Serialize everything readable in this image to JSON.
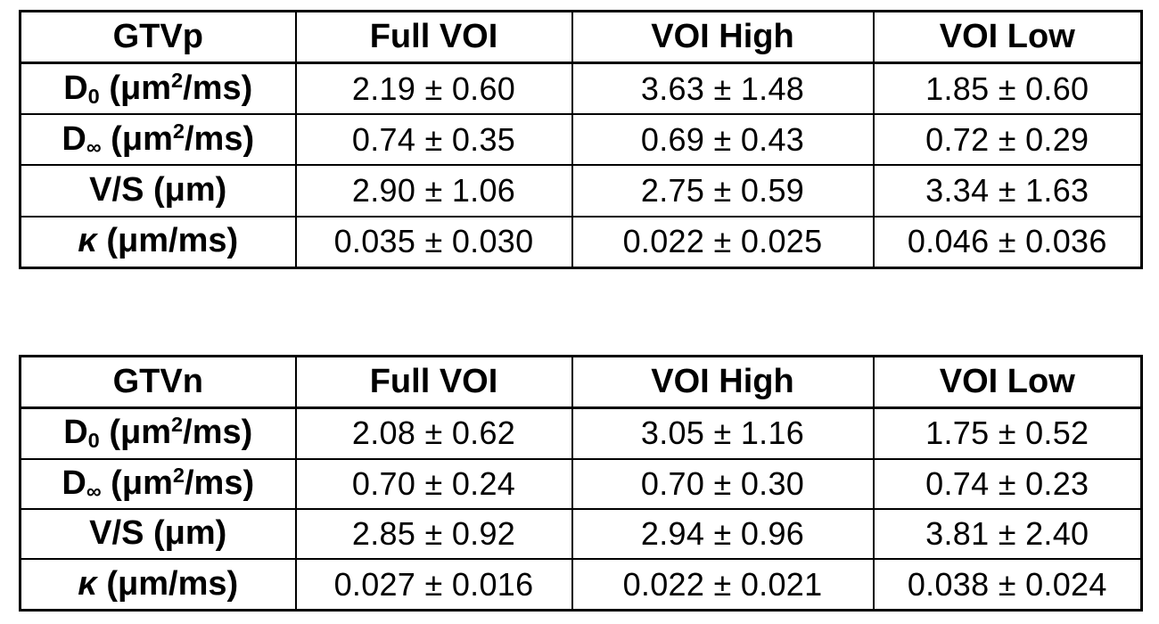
{
  "page": {
    "background_color": "#ffffff",
    "text_color": "#000000",
    "border_color": "#000000"
  },
  "tables": [
    {
      "title": "GTVp",
      "columns": [
        "GTVp",
        "Full VOI",
        "VOI High",
        "VOI Low"
      ],
      "rows": [
        {
          "label": {
            "base": "D",
            "sub": "0",
            "mid": " (μm",
            "sup": "2",
            "end": "/ms)"
          },
          "values": [
            "2.19 ± 0.60",
            "3.63 ± 1.48",
            "1.85 ± 0.60"
          ]
        },
        {
          "label": {
            "base": "D",
            "sub": "∞",
            "mid": " (μm",
            "sup": "2",
            "end": "/ms)"
          },
          "values": [
            "0.74 ± 0.35",
            "0.69 ± 0.43",
            "0.72 ± 0.29"
          ]
        },
        {
          "label": {
            "base": "V/S (μm)"
          },
          "values": [
            "2.90 ± 1.06",
            "2.75 ± 0.59",
            "3.34 ± 1.63"
          ]
        },
        {
          "label": {
            "italic": "κ",
            "end": " (μm/ms)"
          },
          "values": [
            "0.035 ± 0.030",
            "0.022 ± 0.025",
            "0.046 ± 0.036"
          ]
        }
      ]
    },
    {
      "title": "GTVn",
      "columns": [
        "GTVn",
        "Full VOI",
        "VOI High",
        "VOI Low"
      ],
      "rows": [
        {
          "label": {
            "base": "D",
            "sub": "0",
            "mid": " (μm",
            "sup": "2",
            "end": "/ms)"
          },
          "values": [
            "2.08 ± 0.62",
            "3.05 ± 1.16",
            "1.75 ± 0.52"
          ]
        },
        {
          "label": {
            "base": "D",
            "sub": "∞",
            "mid": " (μm",
            "sup": "2",
            "end": "/ms)"
          },
          "values": [
            "0.70 ± 0.24",
            "0.70 ± 0.30",
            "0.74 ± 0.23"
          ]
        },
        {
          "label": {
            "base": "V/S (μm)"
          },
          "values": [
            "2.85 ± 0.92",
            "2.94 ± 0.96",
            "3.81 ± 2.40"
          ]
        },
        {
          "label": {
            "italic": "κ",
            "end": " (μm/ms)"
          },
          "values": [
            "0.027 ± 0.016",
            "0.022 ± 0.021",
            "0.038 ± 0.024"
          ]
        }
      ]
    }
  ]
}
